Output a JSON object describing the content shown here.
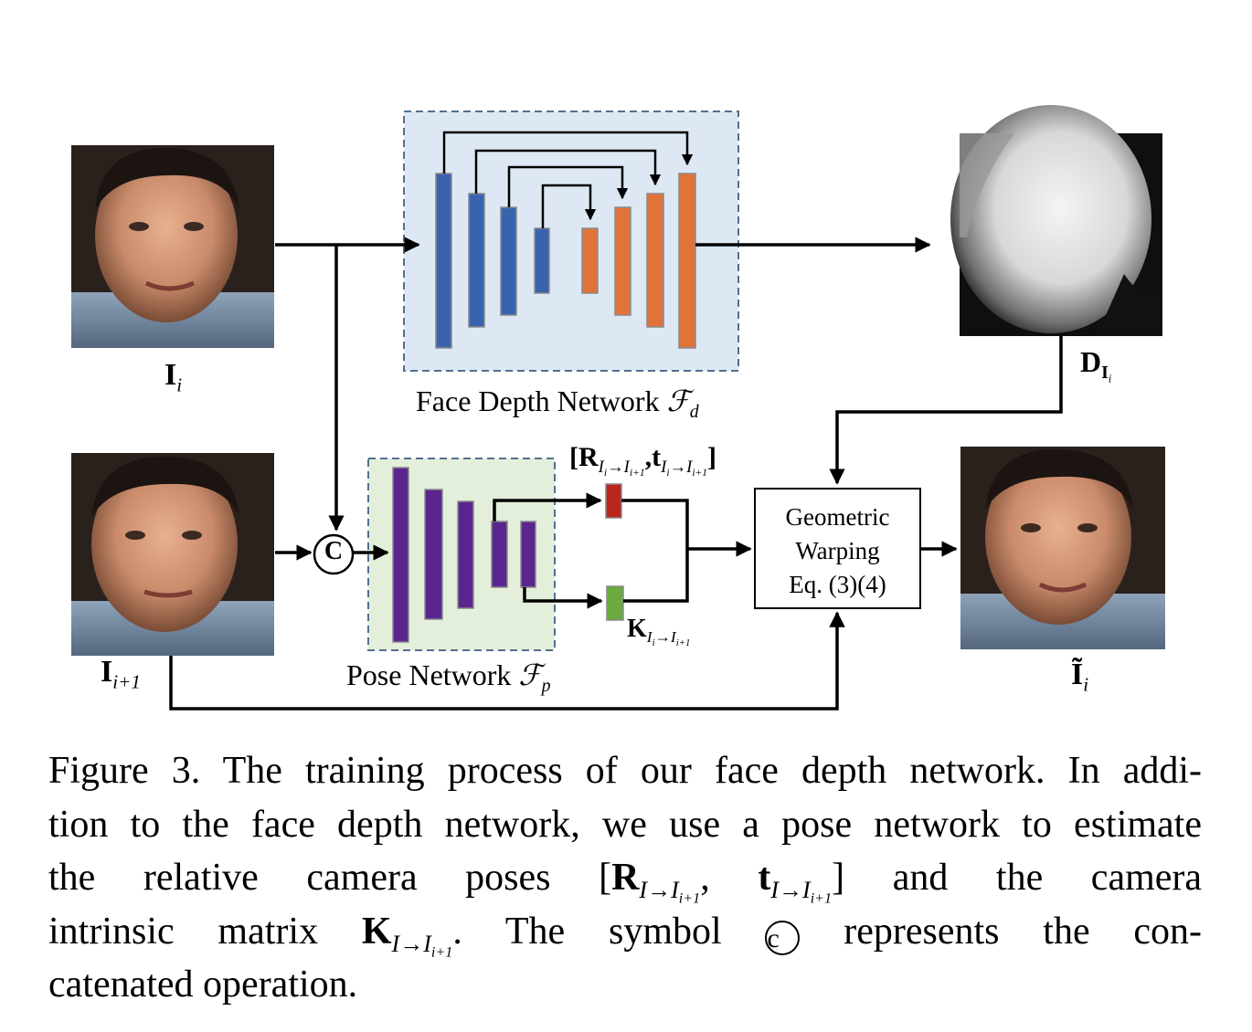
{
  "labels": {
    "input_i": "I",
    "input_i_sub": "i",
    "input_i1": "I",
    "input_i1_sub": "i+1",
    "depth_map": "D",
    "depth_map_sub": "I",
    "depth_map_subsub": "i",
    "output": "Ĩ",
    "output_sub": "i",
    "face_depth_network": "Face Depth Network ",
    "face_depth_symbol": "ℱ",
    "face_depth_symbol_sub": "d",
    "pose_network": "Pose Network ",
    "pose_network_symbol": "ℱ",
    "pose_network_symbol_sub": "p",
    "concat_symbol": "C",
    "rt_open": "[",
    "rt_R": "R",
    "rt_R_sub": "I",
    "rt_R_sub_i": "i",
    "rt_R_sub_rest": "→I",
    "rt_R_sub_rest2": "i+1",
    "rt_comma": ",",
    "rt_t": "t",
    "rt_close": "]",
    "k_label": "K",
    "warp_line1": "Geometric",
    "warp_line2": "Warping",
    "warp_line3": "Eq. (3)(4)"
  },
  "caption": {
    "line1": "Figure 3. The training process of our face depth network. In addi-",
    "line2": "tion to the face depth network, we use a pose network to estimate",
    "line3_pre": "the relative camera poses",
    "line3_post": "and the camera",
    "line4_pre": "intrinsic matrix",
    "line4_mid": ". The symbol",
    "line4_post": "represents the con-",
    "line5": "catenated operation.",
    "math_R": "R",
    "math_t": "t",
    "math_K": "K",
    "math_sub": "I→I",
    "math_sub_i": "i",
    "math_sub_i1": "i+1",
    "circle_c": "c"
  },
  "colors": {
    "depth_panel_bg": "#dde8f4",
    "pose_panel_bg": "#e4efdb",
    "encoder_blue": "#3a63ad",
    "decoder_orange": "#e0733a",
    "pose_purple": "#5b2590",
    "rotation_red": "#b8261d",
    "intrinsic_green": "#6aaa3f"
  }
}
